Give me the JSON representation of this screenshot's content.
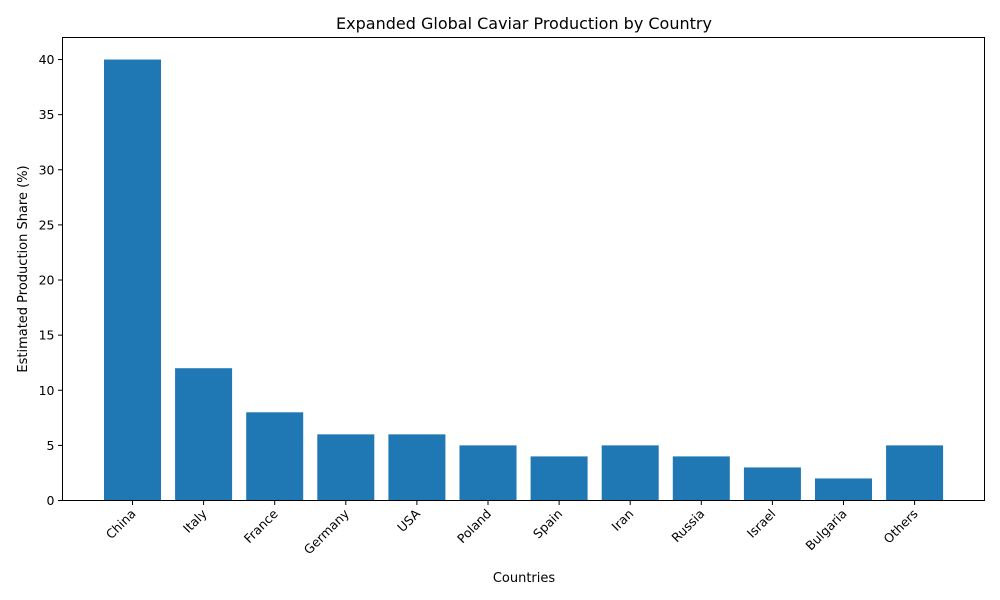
{
  "chart_data": {
    "type": "bar",
    "title": "Expanded Global Caviar Production by Country",
    "xlabel": "Countries",
    "ylabel": "Estimated Production Share (%)",
    "categories": [
      "China",
      "Italy",
      "France",
      "Germany",
      "USA",
      "Poland",
      "Spain",
      "Iran",
      "Russia",
      "Israel",
      "Bulgaria",
      "Others"
    ],
    "values": [
      40,
      12,
      8,
      6,
      6,
      5,
      4,
      5,
      4,
      3,
      2,
      5
    ],
    "ylim": [
      0,
      42
    ],
    "yticks": [
      0,
      5,
      10,
      15,
      20,
      25,
      30,
      35,
      40
    ],
    "bar_color": "#1f77b4",
    "grid": false,
    "legend": "none"
  }
}
